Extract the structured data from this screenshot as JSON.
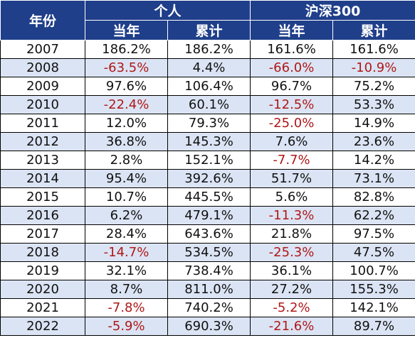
{
  "table": {
    "header": {
      "year": "年份",
      "groups": [
        "个人",
        "沪深300"
      ],
      "sub": [
        "当年",
        "累计",
        "当年",
        "累计"
      ]
    },
    "rows": [
      [
        "2007",
        "186.2%",
        "186.2%",
        "161.6%",
        "161.6%"
      ],
      [
        "2008",
        "-63.5%",
        "4.4%",
        "-66.0%",
        "-10.9%"
      ],
      [
        "2009",
        "97.6%",
        "106.4%",
        "96.7%",
        "75.2%"
      ],
      [
        "2010",
        "-22.4%",
        "60.1%",
        "-12.5%",
        "53.3%"
      ],
      [
        "2011",
        "12.0%",
        "79.3%",
        "-25.0%",
        "14.9%"
      ],
      [
        "2012",
        "36.8%",
        "145.3%",
        "7.6%",
        "23.6%"
      ],
      [
        "2013",
        "2.8%",
        "152.1%",
        "-7.7%",
        "14.2%"
      ],
      [
        "2014",
        "95.4%",
        "392.6%",
        "51.7%",
        "73.1%"
      ],
      [
        "2015",
        "10.7%",
        "445.5%",
        "5.6%",
        "82.8%"
      ],
      [
        "2016",
        "6.2%",
        "479.1%",
        "-11.3%",
        "62.2%"
      ],
      [
        "2017",
        "28.4%",
        "643.6%",
        "21.8%",
        "97.5%"
      ],
      [
        "2018",
        "-14.7%",
        "534.5%",
        "-25.3%",
        "47.5%"
      ],
      [
        "2019",
        "32.1%",
        "738.4%",
        "36.1%",
        "100.7%"
      ],
      [
        "2020",
        "8.7%",
        "811.0%",
        "27.2%",
        "155.3%"
      ],
      [
        "2021",
        "-7.8%",
        "740.2%",
        "-5.2%",
        "142.1%"
      ],
      [
        "2022",
        "-5.9%",
        "690.3%",
        "-21.6%",
        "89.7%"
      ]
    ]
  },
  "colors": {
    "header_bg": "#1f3f8a",
    "header_text": "#ffffff",
    "row_alt_bg": "#dbe4f4",
    "negative_text": "#b01818"
  }
}
